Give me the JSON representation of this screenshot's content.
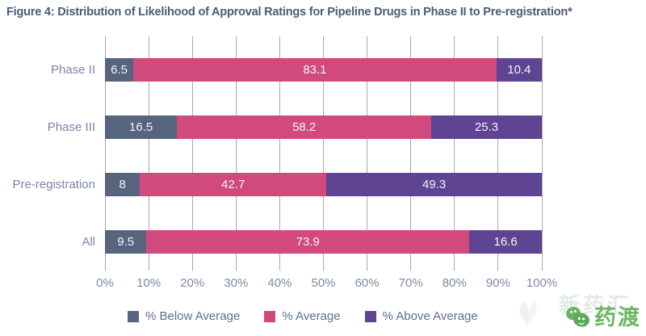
{
  "figure": {
    "title": "Figure 4: Distribution of Likelihood of Approval Ratings for Pipeline Drugs in Phase II to Pre-registration*"
  },
  "chart_data": {
    "type": "bar",
    "orientation": "horizontal",
    "stacked": true,
    "unit": "percent",
    "categories": [
      "Phase II",
      "Phase III",
      "Pre-registration",
      "All"
    ],
    "series": [
      {
        "name": "% Below Average",
        "color": "#57647e",
        "values": [
          6.5,
          16.5,
          8,
          9.5
        ]
      },
      {
        "name": "% Average",
        "color": "#d2497e",
        "values": [
          83.1,
          58.2,
          42.7,
          73.9
        ]
      },
      {
        "name": "% Above Average",
        "color": "#5e4492",
        "values": [
          10.4,
          25.3,
          49.3,
          16.6
        ]
      }
    ],
    "x_ticks": [
      "0%",
      "10%",
      "20%",
      "30%",
      "40%",
      "50%",
      "60%",
      "70%",
      "80%",
      "90%",
      "100%"
    ],
    "xlim": [
      0,
      100
    ],
    "grid": "vertical",
    "legend_position": "bottom"
  },
  "watermark": {
    "faint_text": "新药汇",
    "logo_text": "药渡"
  }
}
